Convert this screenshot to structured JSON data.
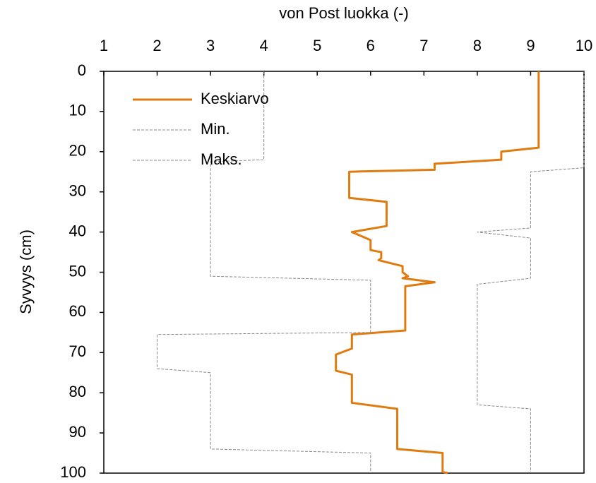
{
  "chart_data": {
    "type": "profile",
    "title": "von Post luokka (-)",
    "y_label": "Syvyys (cm)",
    "xlim": [
      1,
      10
    ],
    "xticks": [
      1,
      2,
      3,
      4,
      5,
      6,
      7,
      8,
      9,
      10
    ],
    "ylim": [
      0,
      100
    ],
    "yticks": [
      0,
      10,
      20,
      30,
      40,
      50,
      60,
      70,
      80,
      90,
      100
    ],
    "y_inverted": true,
    "x_axis_position": "top",
    "grid": false,
    "legend": "top-left",
    "series": [
      {
        "name": "Keskiarvo",
        "color": "#e07b10",
        "dashed": false,
        "x": [
          9.15,
          9.15,
          8.45,
          8.45,
          7.2,
          7.2,
          5.6,
          5.6,
          6.3,
          6.3,
          5.65,
          6.0,
          6.0,
          6.2,
          6.2,
          6.15,
          6.6,
          6.6,
          6.7,
          6.6,
          7.2,
          6.65,
          6.65,
          5.65,
          5.65,
          5.35,
          5.35,
          5.65,
          5.65,
          6.5,
          6.5,
          7.35,
          7.35,
          7.45
        ],
        "y": [
          0,
          19,
          20,
          22,
          23,
          24.5,
          25,
          31.5,
          32.5,
          38.5,
          40,
          42,
          44.5,
          45,
          46.5,
          47,
          48.5,
          50,
          51,
          51.5,
          52.5,
          53.5,
          64.5,
          65.5,
          69,
          70.5,
          74.5,
          75.5,
          82.5,
          84,
          94,
          95,
          99.7,
          100
        ]
      },
      {
        "name": "Min.",
        "color": "#888888",
        "dashed": true,
        "x": [
          4,
          4,
          3,
          3,
          6,
          6,
          2,
          2,
          3,
          3,
          6,
          6
        ],
        "y": [
          0,
          22,
          22.5,
          51,
          52,
          65,
          65.5,
          74,
          75,
          94,
          95,
          100
        ]
      },
      {
        "name": "Maks.",
        "color": "#888888",
        "dashed": true,
        "x": [
          10,
          10,
          9,
          9,
          8,
          9,
          9,
          8,
          8,
          9,
          9
        ],
        "y": [
          0,
          24,
          25,
          39,
          40,
          41.5,
          51.5,
          53,
          83,
          84,
          100
        ]
      }
    ]
  }
}
